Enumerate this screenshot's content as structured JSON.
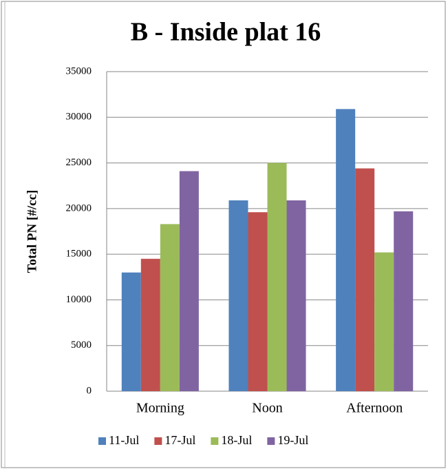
{
  "chart_data": {
    "type": "bar",
    "title": "B - Inside plat 16",
    "y_label": "Total PN [#/cc]",
    "categories": [
      "Morning",
      "Noon",
      "Afternoon"
    ],
    "series": [
      {
        "name": "11-Jul",
        "color": "#4f81bd",
        "values": [
          13000,
          20900,
          30900
        ]
      },
      {
        "name": "17-Jul",
        "color": "#c0504d",
        "values": [
          14500,
          19600,
          24400
        ]
      },
      {
        "name": "18-Jul",
        "color": "#9bbb59",
        "values": [
          18300,
          25000,
          15200
        ]
      },
      {
        "name": "19-Jul",
        "color": "#8064a2",
        "values": [
          24100,
          20900,
          19700
        ]
      }
    ],
    "ylim": [
      0,
      35000
    ],
    "yticks": [
      0,
      5000,
      10000,
      15000,
      20000,
      25000,
      30000,
      35000
    ],
    "grid": true,
    "legend": "bottom"
  }
}
